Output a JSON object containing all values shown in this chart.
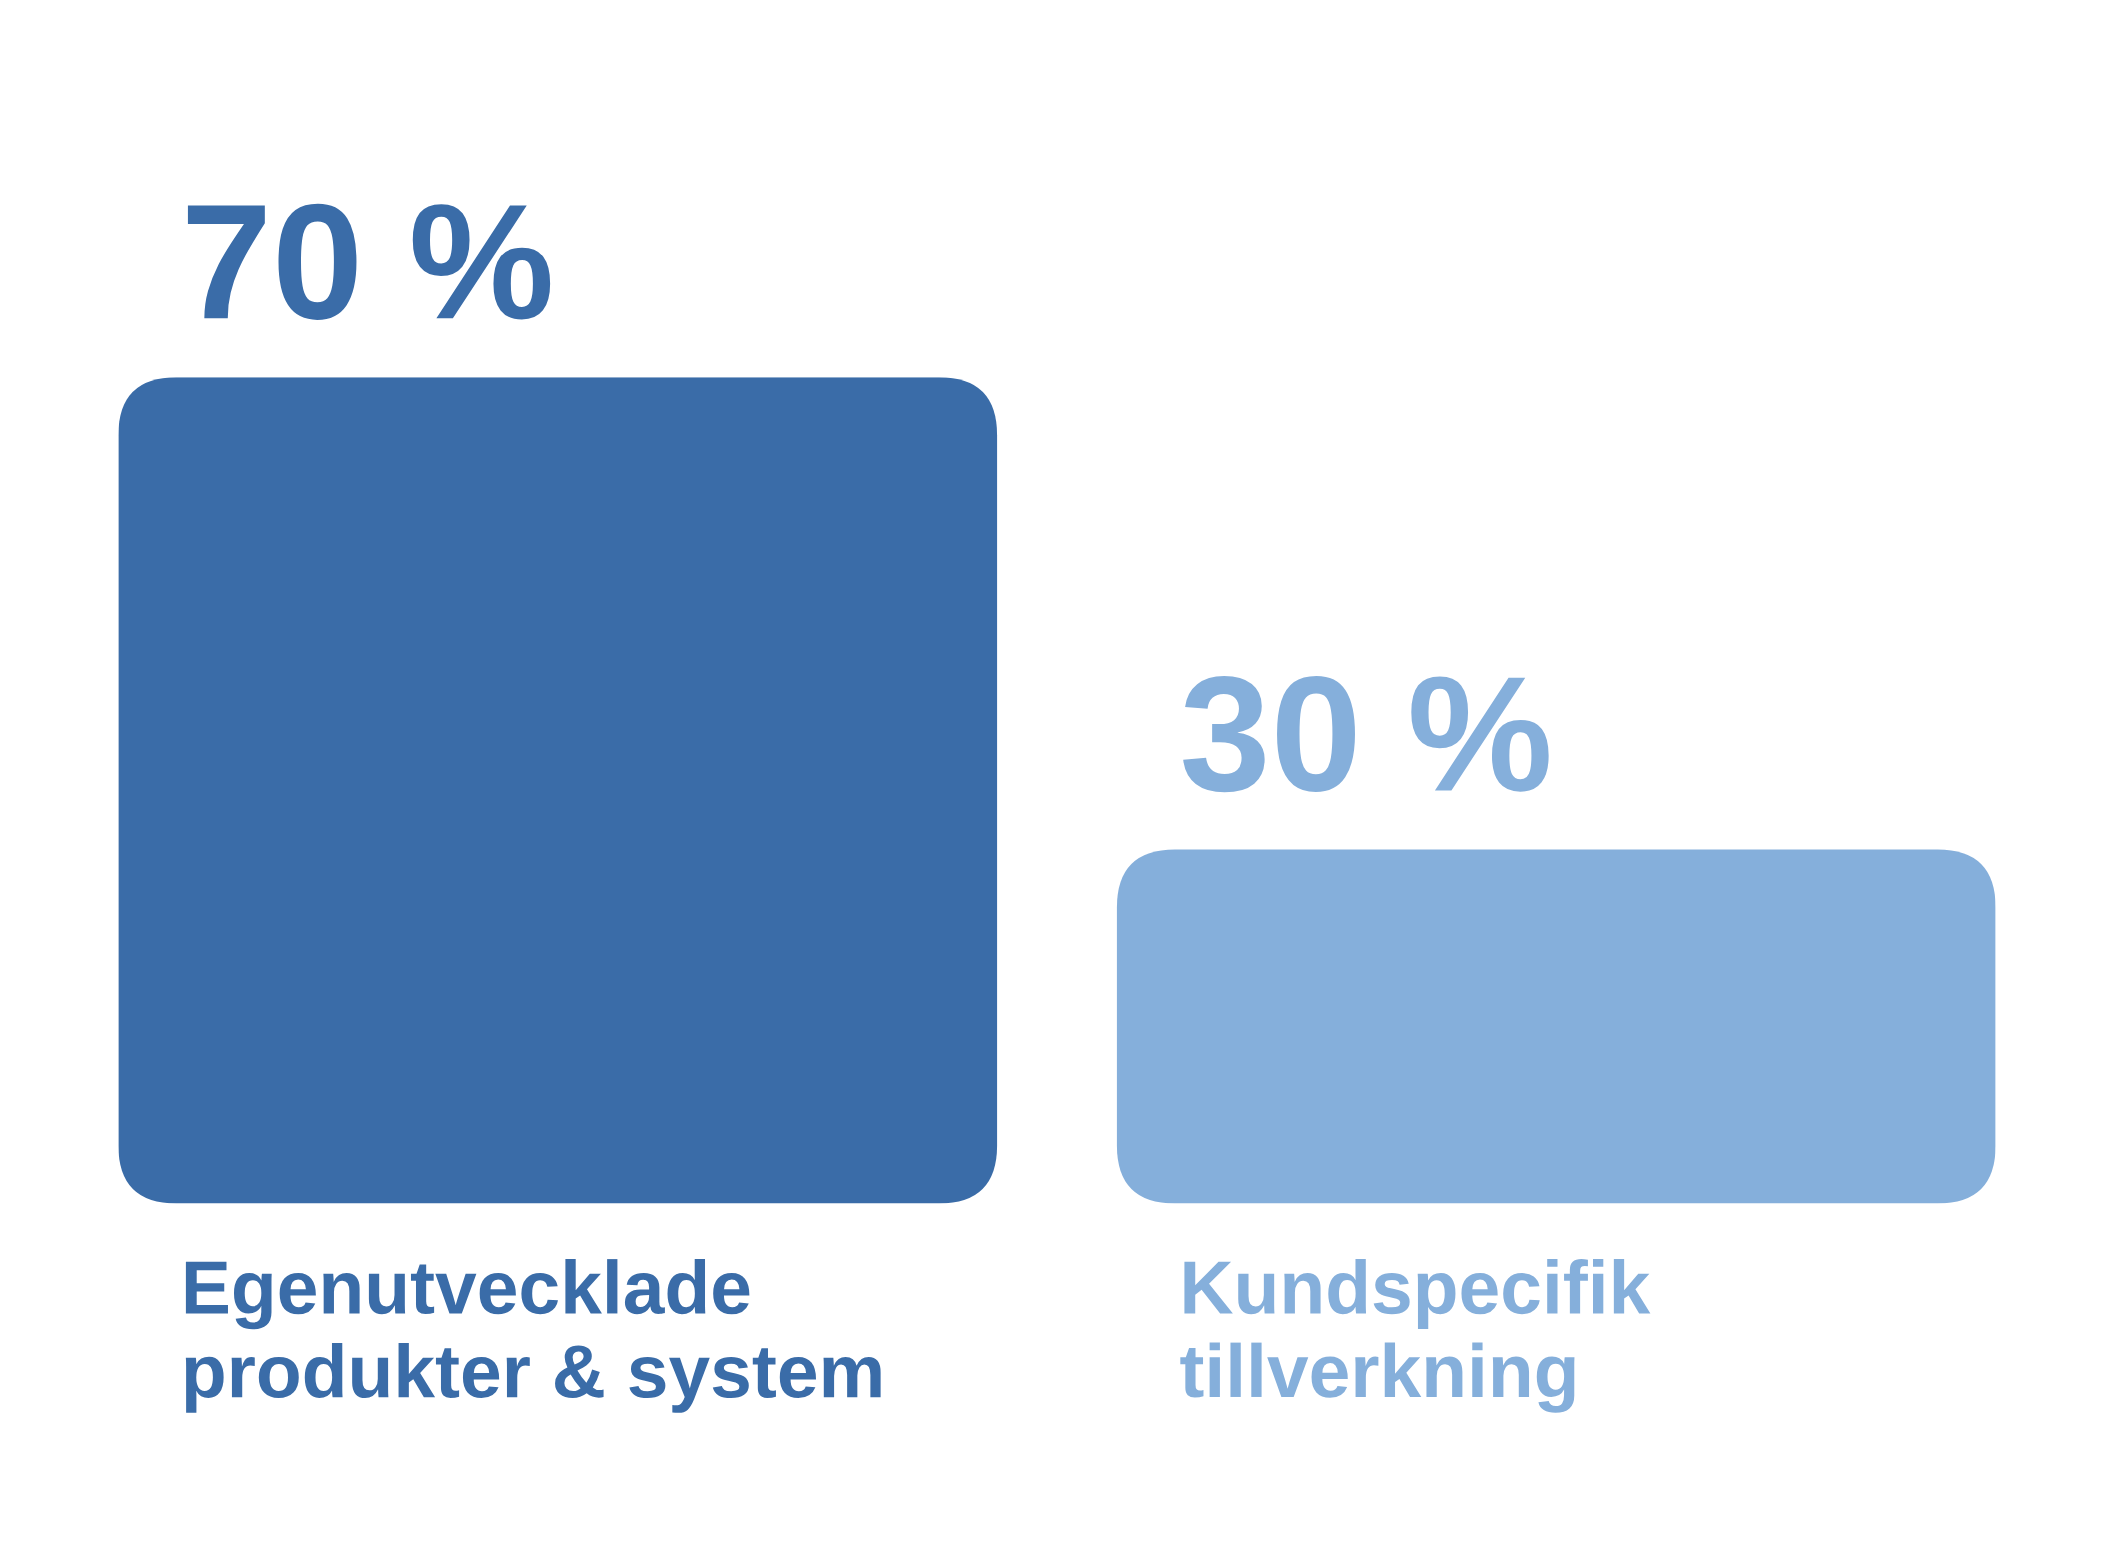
{
  "chart_data": {
    "type": "bar",
    "categories": [
      "Egenutvecklade\nprodukter & system",
      "Kundspecifik\ntillverkning"
    ],
    "values": [
      70,
      30
    ],
    "colors": [
      "#3a6ca8",
      "#85afdb"
    ],
    "value_labels": [
      "70 %",
      "30 %"
    ]
  }
}
